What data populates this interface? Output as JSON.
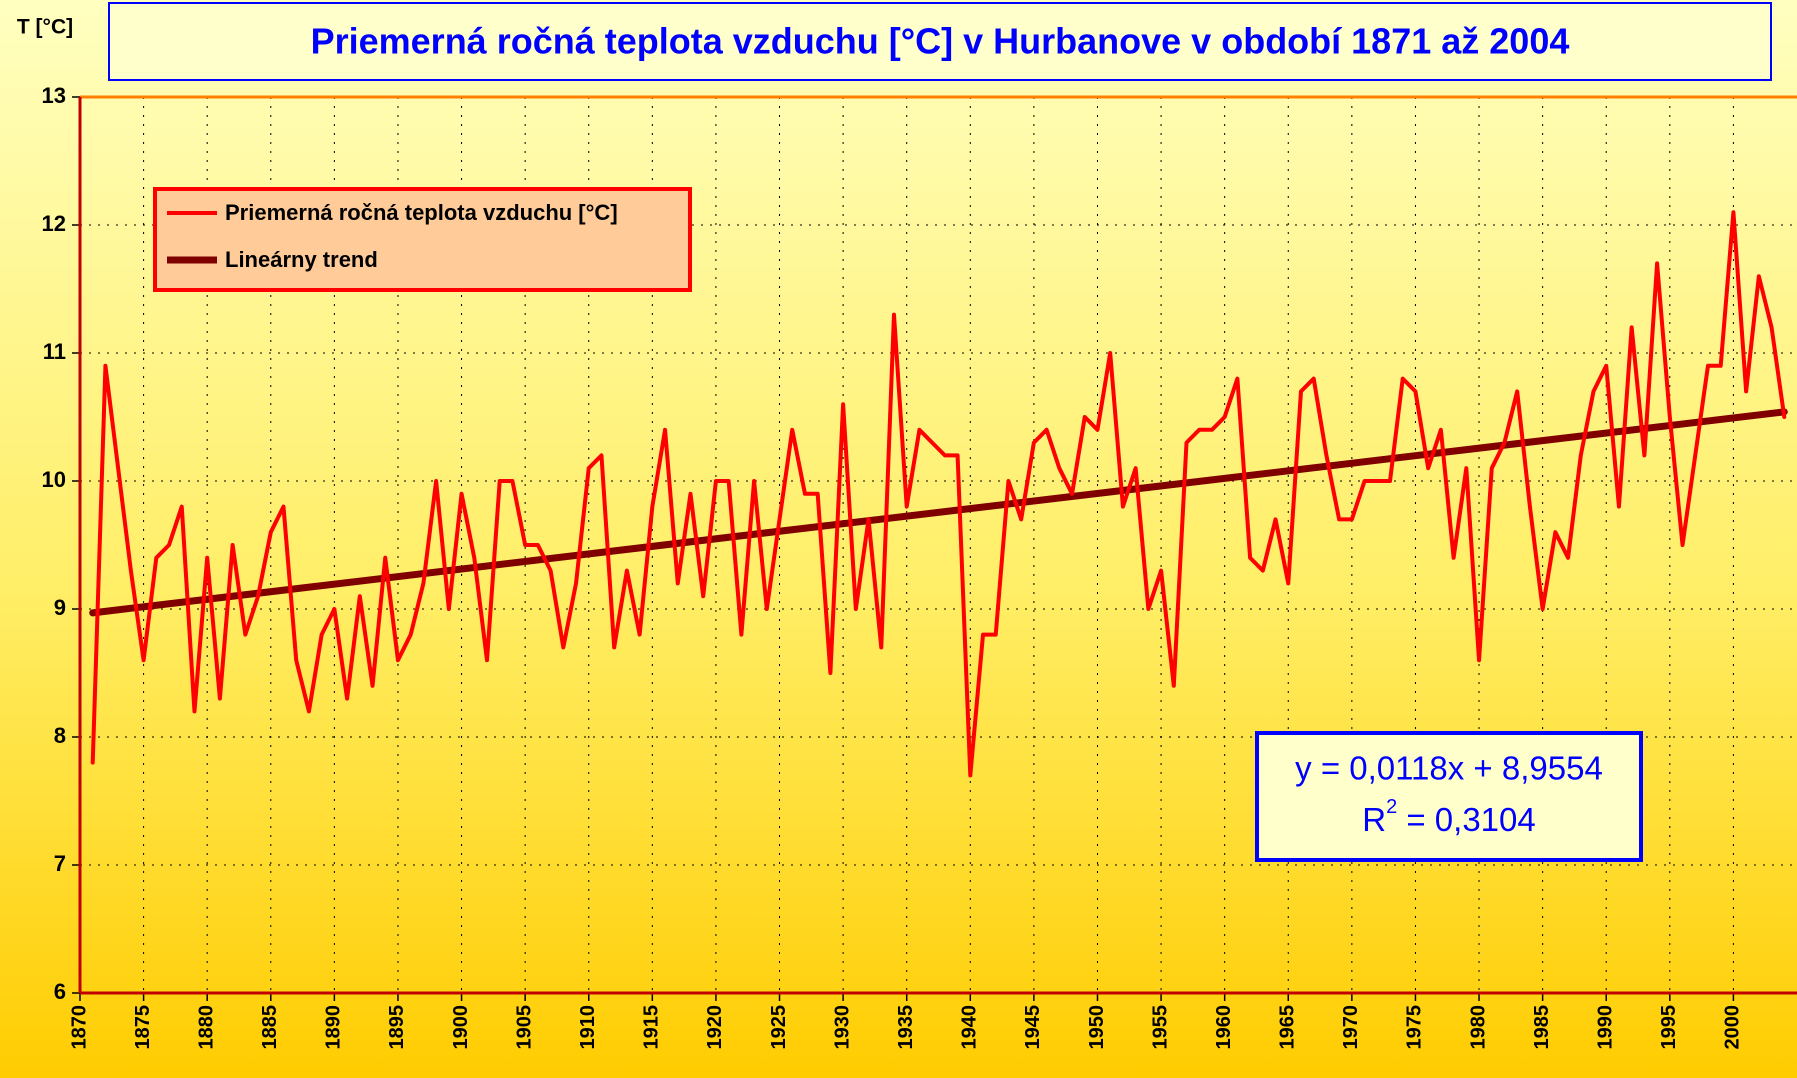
{
  "chart_data": {
    "type": "line",
    "title": "Priemerná ročná teplota vzduchu [°C] v Hurbanove v období 1871 až 2004",
    "y_label": "T [°C]",
    "xlim": [
      1870,
      2005
    ],
    "ylim": [
      6,
      13
    ],
    "xticks": [
      1870,
      1875,
      1880,
      1885,
      1890,
      1895,
      1900,
      1905,
      1910,
      1915,
      1920,
      1925,
      1930,
      1935,
      1940,
      1945,
      1950,
      1955,
      1960,
      1965,
      1970,
      1975,
      1980,
      1985,
      1990,
      1995,
      2000
    ],
    "yticks": [
      6,
      7,
      8,
      9,
      10,
      11,
      12,
      13
    ],
    "grid": true,
    "legend": "upper left",
    "series": [
      {
        "name": "Priemerná ročná teplota vzduchu [°C]",
        "color": "#ff0000",
        "x": [
          1871,
          1872,
          1873,
          1874,
          1875,
          1876,
          1877,
          1878,
          1879,
          1880,
          1881,
          1882,
          1883,
          1884,
          1885,
          1886,
          1887,
          1888,
          1889,
          1890,
          1891,
          1892,
          1893,
          1894,
          1895,
          1896,
          1897,
          1898,
          1899,
          1900,
          1901,
          1902,
          1903,
          1904,
          1905,
          1906,
          1907,
          1908,
          1909,
          1910,
          1911,
          1912,
          1913,
          1914,
          1915,
          1916,
          1917,
          1918,
          1919,
          1920,
          1921,
          1922,
          1923,
          1924,
          1925,
          1926,
          1927,
          1928,
          1929,
          1930,
          1931,
          1932,
          1933,
          1934,
          1935,
          1936,
          1937,
          1938,
          1939,
          1940,
          1941,
          1942,
          1943,
          1944,
          1945,
          1946,
          1947,
          1948,
          1949,
          1950,
          1951,
          1952,
          1953,
          1954,
          1955,
          1956,
          1957,
          1958,
          1959,
          1960,
          1961,
          1962,
          1963,
          1964,
          1965,
          1966,
          1967,
          1968,
          1969,
          1970,
          1971,
          1972,
          1973,
          1974,
          1975,
          1976,
          1977,
          1978,
          1979,
          1980,
          1981,
          1982,
          1983,
          1984,
          1985,
          1986,
          1987,
          1988,
          1989,
          1990,
          1991,
          1992,
          1993,
          1994,
          1995,
          1996,
          1997,
          1998,
          1999,
          2000,
          2001,
          2002,
          2003,
          2004
        ],
        "values": [
          7.8,
          10.9,
          10.1,
          9.3,
          8.6,
          9.4,
          9.5,
          9.8,
          8.2,
          9.4,
          8.3,
          9.5,
          8.8,
          9.1,
          9.6,
          9.8,
          8.6,
          8.2,
          8.8,
          9.0,
          8.3,
          9.1,
          8.4,
          9.4,
          8.6,
          8.8,
          9.2,
          10.0,
          9.0,
          9.9,
          9.4,
          8.6,
          10.0,
          10.0,
          9.5,
          9.5,
          9.3,
          8.7,
          9.2,
          10.1,
          10.2,
          8.7,
          9.3,
          8.8,
          9.8,
          10.4,
          9.2,
          9.9,
          9.1,
          10.0,
          10.0,
          8.8,
          10.0,
          9.0,
          9.7,
          10.4,
          9.9,
          9.9,
          8.5,
          10.6,
          9.0,
          9.7,
          8.7,
          11.3,
          9.8,
          10.4,
          10.3,
          10.2,
          10.2,
          7.7,
          8.8,
          8.8,
          10.0,
          9.7,
          10.3,
          10.4,
          10.1,
          9.9,
          10.5,
          10.4,
          11.0,
          9.8,
          10.1,
          9.0,
          9.3,
          8.4,
          10.3,
          10.4,
          10.4,
          10.5,
          10.8,
          9.4,
          9.3,
          9.7,
          9.2,
          10.7,
          10.8,
          10.2,
          9.7,
          9.7,
          10.0,
          10.0,
          10.0,
          10.8,
          10.7,
          10.1,
          10.4,
          9.4,
          10.1,
          8.6,
          10.1,
          10.3,
          10.7,
          9.8,
          9.0,
          9.6,
          9.4,
          10.2,
          10.7,
          10.9,
          9.8,
          11.2,
          10.2,
          11.7,
          10.5,
          9.5,
          10.2,
          10.9,
          10.9,
          12.1,
          10.7,
          11.6,
          11.2,
          10.5
        ]
      },
      {
        "name": "Lineárny trend",
        "color": "#800000",
        "x": [
          1871,
          2004
        ],
        "values": [
          8.97,
          10.54
        ]
      }
    ],
    "equation": "y = 0,0118x + 8,9554",
    "r_squared": {
      "symbol": "R",
      "sup": "2",
      "text": " = 0,3104"
    }
  }
}
